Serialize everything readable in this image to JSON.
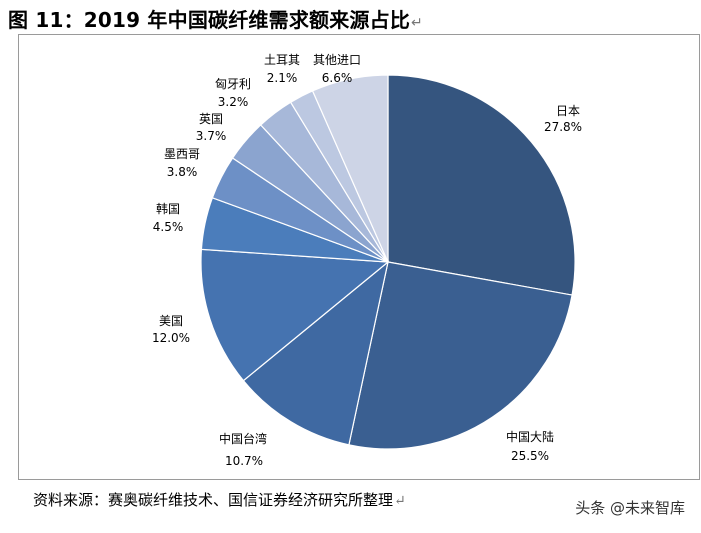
{
  "figure_title": "图 11：2019 年中国碳纤维需求额来源占比",
  "source_note": "资料来源：赛奥碳纤维技术、国信证券经济研究所整理",
  "watermark": "头条 @未来智库",
  "chart_data": {
    "type": "pie",
    "title": "",
    "start_angle_deg": 0,
    "direction": "clockwise",
    "slices": [
      {
        "label": "日本",
        "value": 27.8,
        "display": "27.8%",
        "color": "#35557F"
      },
      {
        "label": "中国大陆",
        "value": 25.5,
        "display": "25.5%",
        "color": "#3A5F91"
      },
      {
        "label": "中国台湾",
        "value": 10.7,
        "display": "10.7%",
        "color": "#3F69A2"
      },
      {
        "label": "美国",
        "value": 12.0,
        "display": "12.0%",
        "color": "#4573B0"
      },
      {
        "label": "韩国",
        "value": 4.5,
        "display": "4.5%",
        "color": "#4B7DBB"
      },
      {
        "label": "墨西哥",
        "value": 3.8,
        "display": "3.8%",
        "color": "#6D90C6"
      },
      {
        "label": "英国",
        "value": 3.7,
        "display": "3.7%",
        "color": "#8BA4CF"
      },
      {
        "label": "匈牙利",
        "value": 3.2,
        "display": "3.2%",
        "color": "#A7B8D9"
      },
      {
        "label": "土耳其",
        "value": 2.1,
        "display": "2.1%",
        "color": "#BCC8E1"
      },
      {
        "label": "其他进口",
        "value": 6.6,
        "display": "6.6%",
        "color": "#CDD4E6"
      }
    ]
  }
}
